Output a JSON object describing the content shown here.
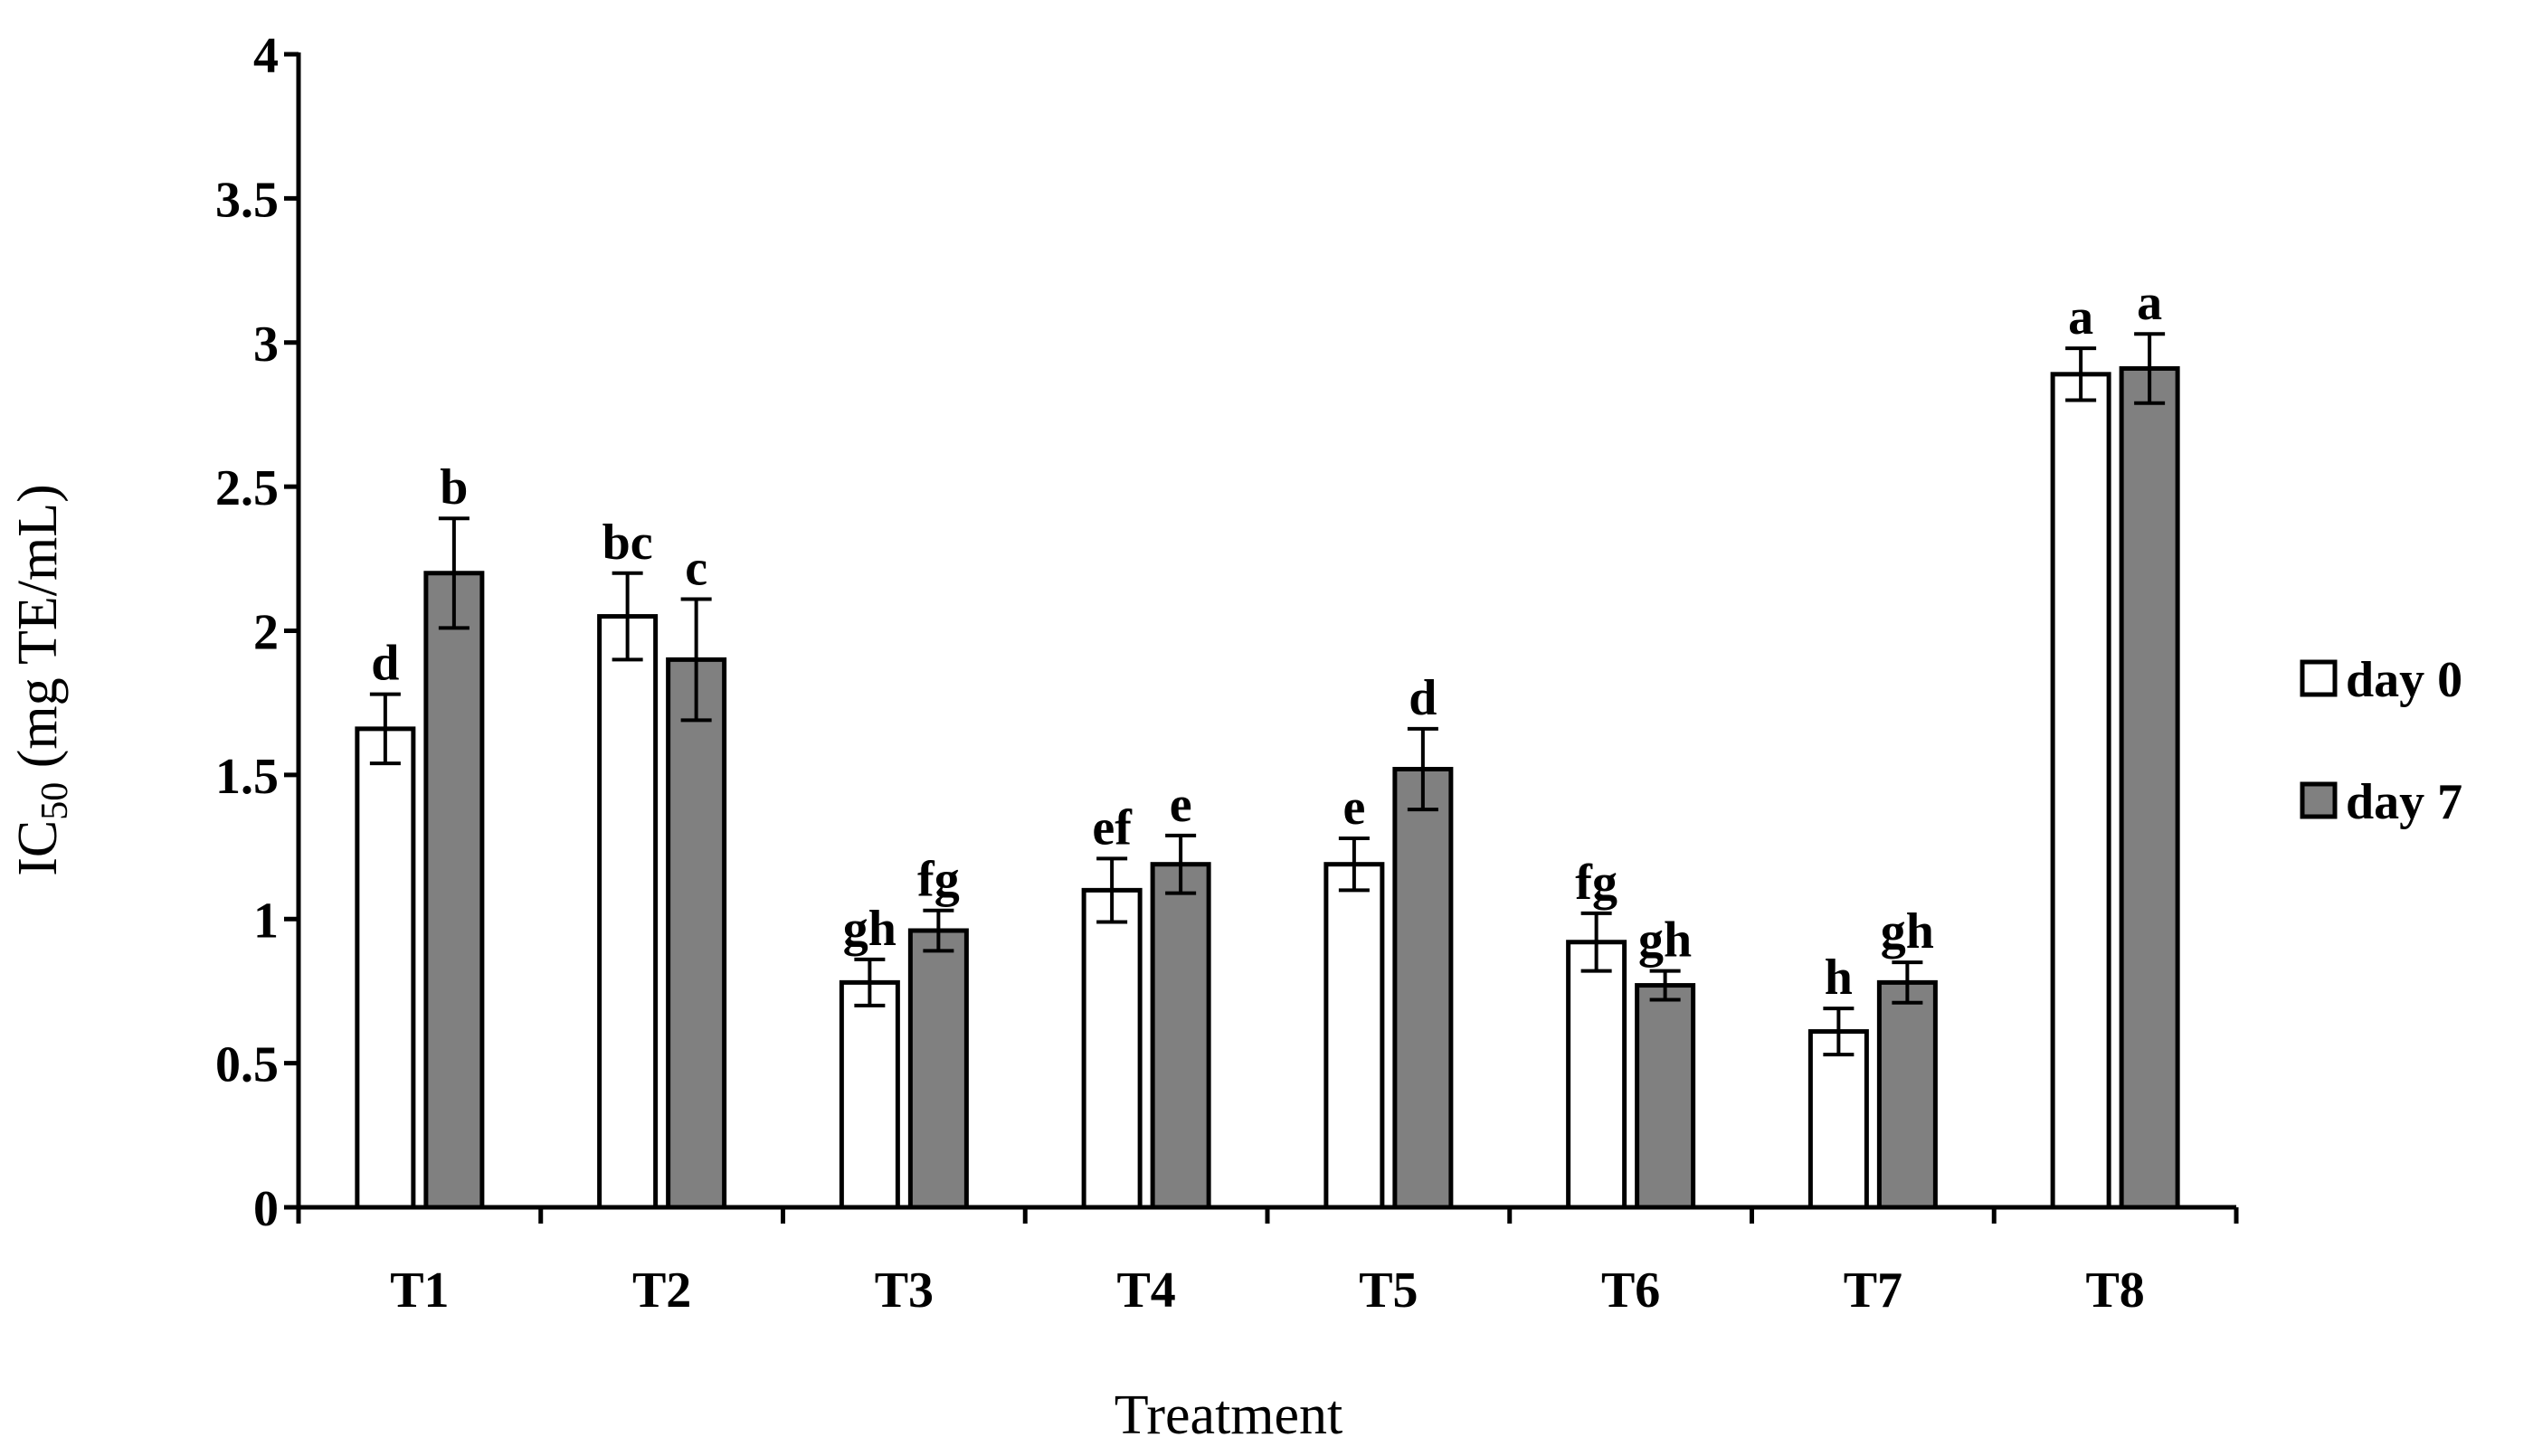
{
  "chart_data": {
    "type": "bar",
    "title": "",
    "xlabel": "Treatment",
    "ylabel_main": "IC",
    "ylabel_sub": "50",
    "ylabel_rest": " (mg TE/mL)",
    "ylim": [
      0,
      4
    ],
    "ytick_values": [
      0,
      0.5,
      1,
      1.5,
      2,
      2.5,
      3,
      3.5,
      4
    ],
    "ytick_labels": [
      "0",
      "0.5",
      "1",
      "1.5",
      "2",
      "2.5",
      "3",
      "3.5",
      "4"
    ],
    "categories": [
      "T1",
      "T2",
      "T3",
      "T4",
      "T5",
      "T6",
      "T7",
      "T8"
    ],
    "legend_position": "right",
    "series": [
      {
        "name": "day 0",
        "color": "#ffffff",
        "values": [
          1.66,
          2.05,
          0.78,
          1.1,
          1.19,
          0.92,
          0.61,
          2.89
        ],
        "errors": [
          0.12,
          0.15,
          0.08,
          0.11,
          0.09,
          0.1,
          0.08,
          0.09
        ],
        "letters": [
          "d",
          "bc",
          "gh",
          "ef",
          "e",
          "fg",
          "h",
          "a"
        ]
      },
      {
        "name": "day 7",
        "color": "#808080",
        "values": [
          2.2,
          1.9,
          0.96,
          1.19,
          1.52,
          0.77,
          0.78,
          2.91
        ],
        "errors": [
          0.19,
          0.21,
          0.07,
          0.1,
          0.14,
          0.05,
          0.07,
          0.12
        ],
        "letters": [
          "b",
          "c",
          "fg",
          "e",
          "d",
          "gh",
          "gh",
          "a"
        ]
      }
    ]
  }
}
